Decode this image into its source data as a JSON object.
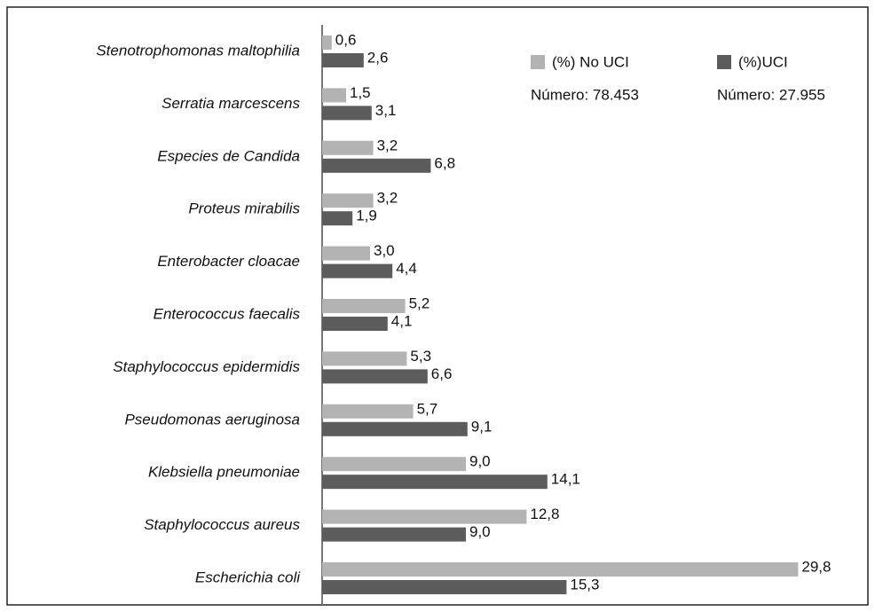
{
  "chart_data": {
    "type": "bar",
    "orientation": "horizontal",
    "categories": [
      "Stenotrophomonas maltophilia",
      "Serratia marcescens",
      "Especies de Candida",
      "Proteus mirabilis",
      "Enterobacter cloacae",
      "Enterococcus faecalis",
      "Staphylococcus epidermidis",
      "Pseudomonas aeruginosa",
      "Klebsiella pneumoniae",
      "Staphylococcus aureus",
      "Escherichia coli"
    ],
    "series": [
      {
        "name": "(%) No UCI",
        "color": "#b3b3b3",
        "values": [
          0.6,
          1.5,
          3.2,
          3.2,
          3.0,
          5.2,
          5.3,
          5.7,
          9.0,
          12.8,
          29.8
        ],
        "value_labels": [
          "0,6",
          "1,5",
          "3,2",
          "3,2",
          "3,0",
          "5,2",
          "5,3",
          "5,7",
          "9,0",
          "12,8",
          "29,8"
        ]
      },
      {
        "name": "(%)UCI",
        "color": "#5c5c5c",
        "values": [
          2.6,
          3.1,
          6.8,
          1.9,
          4.4,
          4.1,
          6.6,
          9.1,
          14.1,
          9.0,
          15.3
        ],
        "value_labels": [
          "2,6",
          "3,1",
          "6,8",
          "1,9",
          "4,4",
          "4,1",
          "6,6",
          "9,1",
          "14,1",
          "9,0",
          "15,3"
        ]
      }
    ],
    "annotations": [
      "Número: 78.453",
      "Número: 27.955"
    ],
    "xlim": [
      0,
      30
    ],
    "grid": false,
    "legend": "upper right"
  }
}
